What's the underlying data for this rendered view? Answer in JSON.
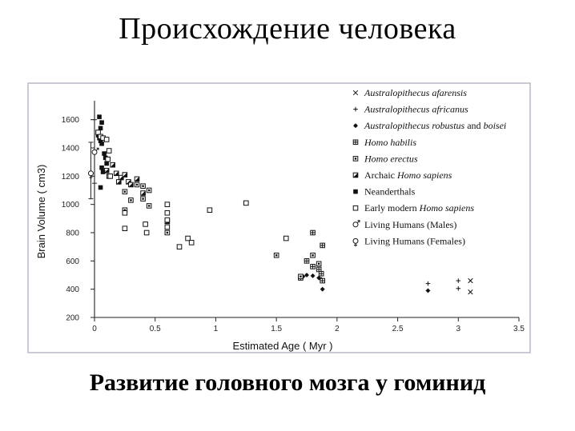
{
  "slide": {
    "title": "Происхождение человека",
    "caption": "Развитие головного мозга у гоминид"
  },
  "chart_data": {
    "type": "scatter",
    "xlabel": "Estimated Age ( Myr )",
    "ylabel": "Brain Volume  ( cm3)",
    "xlim": [
      0,
      3.5
    ],
    "ylim": [
      200,
      1700
    ],
    "x_ticks": [
      "0",
      "0.5",
      "1",
      "1.5",
      "2",
      "2.5",
      "3",
      "3.5"
    ],
    "y_ticks": [
      "200",
      "400",
      "600",
      "800",
      "1000",
      "1200",
      "1400",
      "1600"
    ],
    "grid": false,
    "legend_position": "top-right",
    "series": [
      {
        "name": "Australopithecus afarensis",
        "name_parts": [
          {
            "t": "Australopithecus afarensis",
            "i": true
          }
        ],
        "marker": "x",
        "points": [
          [
            3.1,
            460
          ],
          [
            3.1,
            380
          ]
        ]
      },
      {
        "name": "Australopithecus africanus",
        "name_parts": [
          {
            "t": "Australopithecus africanus",
            "i": true
          }
        ],
        "marker": "plus",
        "points": [
          [
            2.75,
            440
          ],
          [
            3.0,
            460
          ],
          [
            3.0,
            405
          ]
        ]
      },
      {
        "name": "Australopithecus robustus and boisei",
        "name_parts": [
          {
            "t": "Australopithecus robustus",
            "i": true
          },
          {
            "t": " and ",
            "i": false
          },
          {
            "t": "boisei",
            "i": true
          }
        ],
        "marker": "star",
        "points": [
          [
            2.75,
            390
          ],
          [
            1.7,
            480
          ],
          [
            1.72,
            490
          ],
          [
            1.75,
            500
          ],
          [
            1.8,
            495
          ],
          [
            1.85,
            480
          ],
          [
            1.87,
            470
          ],
          [
            1.88,
            400
          ]
        ]
      },
      {
        "name": "Homo habilis",
        "name_parts": [
          {
            "t": "Homo habilis",
            "i": true
          }
        ],
        "marker": "sq-grid",
        "points": [
          [
            1.8,
            800
          ],
          [
            1.88,
            710
          ],
          [
            1.75,
            600
          ],
          [
            1.8,
            560
          ],
          [
            1.85,
            540
          ],
          [
            1.87,
            510
          ],
          [
            1.7,
            480
          ],
          [
            1.88,
            460
          ]
        ]
      },
      {
        "name": "Homo erectus",
        "name_parts": [
          {
            "t": "Homo erectus",
            "i": true
          }
        ],
        "marker": "sq-dot",
        "points": [
          [
            0.25,
            1090
          ],
          [
            0.3,
            1030
          ],
          [
            0.35,
            1140
          ],
          [
            0.4,
            1130
          ],
          [
            0.45,
            1100
          ],
          [
            0.4,
            1040
          ],
          [
            0.45,
            990
          ],
          [
            0.6,
            800
          ],
          [
            0.25,
            960
          ],
          [
            1.5,
            640
          ],
          [
            1.8,
            640
          ],
          [
            1.85,
            580
          ],
          [
            1.7,
            490
          ]
        ]
      },
      {
        "name": "Archaic Homo sapiens",
        "name_parts": [
          {
            "t": "Archaic ",
            "i": false
          },
          {
            "t": "Homo sapiens",
            "i": true
          }
        ],
        "marker": "sq-half",
        "points": [
          [
            0.1,
            1240
          ],
          [
            0.12,
            1200
          ],
          [
            0.15,
            1280
          ],
          [
            0.18,
            1220
          ],
          [
            0.2,
            1160
          ],
          [
            0.22,
            1190
          ],
          [
            0.25,
            1210
          ],
          [
            0.28,
            1160
          ],
          [
            0.3,
            1140
          ],
          [
            0.35,
            1180
          ],
          [
            0.4,
            1080
          ],
          [
            0.6,
            880
          ]
        ]
      },
      {
        "name": "Neanderthals",
        "name_parts": [
          {
            "t": "Neanderthals",
            "i": false
          }
        ],
        "marker": "sq-fill",
        "points": [
          [
            0.04,
            1620
          ],
          [
            0.06,
            1580
          ],
          [
            0.05,
            1540
          ],
          [
            0.03,
            1490
          ],
          [
            0.04,
            1470
          ],
          [
            0.05,
            1450
          ],
          [
            0.06,
            1430
          ],
          [
            0.08,
            1360
          ],
          [
            0.09,
            1330
          ],
          [
            0.1,
            1290
          ],
          [
            0.06,
            1260
          ],
          [
            0.07,
            1230
          ],
          [
            0.05,
            1120
          ]
        ]
      },
      {
        "name": "Early modern Homo sapiens",
        "name_parts": [
          {
            "t": "Early modern ",
            "i": false
          },
          {
            "t": "Homo sapiens",
            "i": true
          }
        ],
        "marker": "sq-open",
        "points": [
          [
            0.03,
            1510
          ],
          [
            0.05,
            1480
          ],
          [
            0.07,
            1470
          ],
          [
            0.1,
            1460
          ],
          [
            0.12,
            1380
          ],
          [
            0.11,
            1320
          ],
          [
            0.13,
            1200
          ],
          [
            0.25,
            940
          ],
          [
            0.25,
            830
          ],
          [
            0.42,
            860
          ],
          [
            0.43,
            800
          ],
          [
            0.6,
            1000
          ],
          [
            0.6,
            940
          ],
          [
            0.6,
            890
          ],
          [
            0.6,
            840
          ],
          [
            0.7,
            700
          ],
          [
            0.77,
            760
          ],
          [
            0.8,
            730
          ],
          [
            0.95,
            960
          ],
          [
            1.25,
            1010
          ],
          [
            1.58,
            760
          ]
        ]
      },
      {
        "name": "Living Humans (Males)",
        "name_parts": [
          {
            "t": "Living Humans (Males)",
            "i": false
          }
        ],
        "marker": "male",
        "points": [
          [
            0,
            1370
          ]
        ]
      },
      {
        "name": "Living Humans (Females)",
        "name_parts": [
          {
            "t": "Living Humans (Females)",
            "i": false
          }
        ],
        "marker": "female",
        "points": [
          [
            -0.03,
            1220
          ]
        ]
      }
    ],
    "error_bars": [
      {
        "x": 0,
        "low": 1150,
        "high": 1600
      },
      {
        "x": -0.03,
        "low": 1040,
        "high": 1440
      }
    ]
  }
}
